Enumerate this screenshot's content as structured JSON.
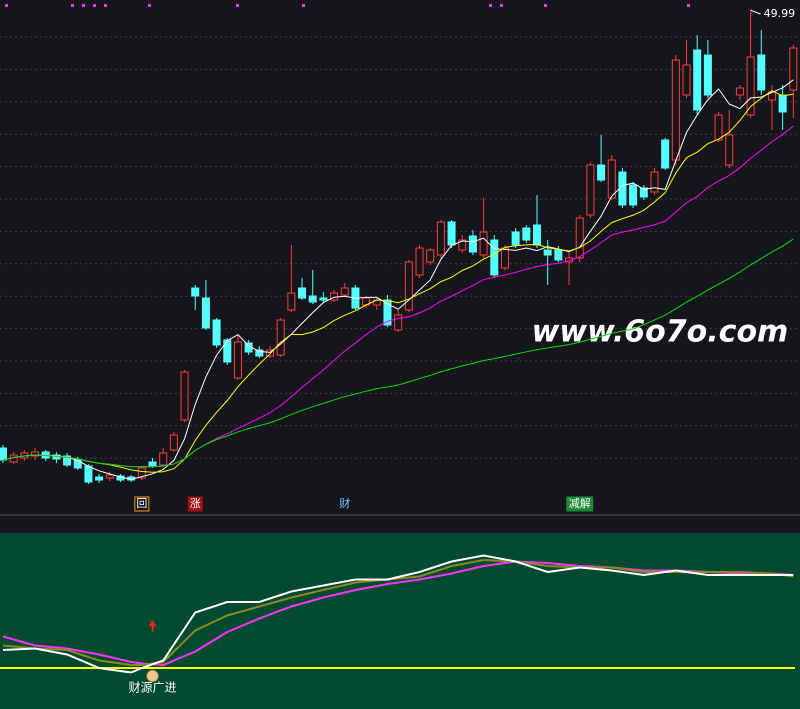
{
  "chart_data": [
    {
      "type": "candlestick",
      "ylim": [
        2,
        51
      ],
      "up_color": "#ff3c3c",
      "down_color": "#54ffff",
      "candles": {
        "open": [
          6.2,
          4.8,
          5.2,
          5.4,
          5.8,
          5.5,
          5.4,
          5.0,
          4.4,
          3.3,
          3.2,
          3.4,
          3.3,
          3.2,
          4.8,
          4.5,
          6.0,
          9.0,
          22.2,
          21.2,
          19.0,
          17.0,
          13.2,
          16.7,
          16.0,
          15.4,
          15.5,
          20.0,
          22.2,
          21.4,
          21.2,
          21.0,
          21.5,
          22.2,
          20.5,
          20.5,
          21.0,
          18.0,
          20.0,
          23.5,
          24.8,
          25.5,
          28.8,
          26.0,
          27.4,
          25.5,
          27.0,
          24.2,
          27.8,
          28.2,
          28.5,
          26.0,
          26.0,
          24.8,
          25.2,
          29.5,
          34.5,
          31.2,
          33.8,
          32.5,
          32.2,
          31.8,
          37.0,
          35.0,
          41.5,
          46.0,
          45.5,
          37.0,
          34.5,
          41.5,
          39.5,
          45.5,
          41.0,
          41.5,
          42.0
        ],
        "high": [
          6.5,
          5.8,
          6.0,
          6.2,
          6.0,
          5.8,
          5.7,
          5.3,
          4.6,
          3.6,
          3.8,
          3.6,
          3.5,
          4.4,
          5.2,
          6.2,
          7.8,
          14.0,
          22.5,
          23.0,
          19.2,
          17.2,
          17.5,
          17.0,
          16.4,
          16.4,
          19.2,
          26.5,
          23.2,
          24.0,
          21.8,
          22.0,
          22.7,
          22.5,
          21.4,
          21.3,
          21.5,
          20.0,
          25.0,
          26.5,
          26.2,
          29.0,
          29.0,
          27.5,
          28.0,
          31.2,
          27.5,
          26.5,
          28.2,
          28.5,
          31.5,
          27.0,
          26.4,
          26.0,
          29.5,
          34.8,
          37.5,
          35.5,
          34.2,
          32.8,
          32.5,
          34.2,
          37.2,
          45.5,
          47.0,
          47.5,
          47.0,
          39.8,
          40.0,
          42.5,
          49.99,
          48.0,
          42.5,
          42.5,
          46.5
        ],
        "low": [
          4.7,
          4.6,
          4.9,
          5.0,
          4.9,
          4.7,
          4.3,
          4.0,
          2.6,
          2.7,
          2.9,
          2.8,
          2.8,
          3.0,
          4.2,
          4.3,
          5.8,
          8.8,
          20.0,
          18.0,
          16.2,
          14.5,
          13.0,
          15.5,
          15.2,
          15.2,
          15.3,
          19.8,
          21.0,
          20.6,
          20.8,
          20.8,
          21.3,
          20.0,
          20.2,
          20.0,
          18.3,
          17.8,
          19.8,
          23.2,
          24.5,
          25.2,
          26.2,
          25.7,
          25.5,
          25.2,
          23.2,
          24.0,
          26.2,
          26.7,
          26.2,
          22.5,
          24.8,
          22.5,
          24.8,
          29.2,
          32.8,
          31.0,
          30.2,
          30.2,
          31.0,
          31.5,
          34.0,
          34.5,
          41.2,
          39.5,
          41.2,
          36.8,
          34.2,
          41.0,
          39.2,
          41.5,
          38.0,
          38.0,
          39.2
        ],
        "close": [
          5.0,
          5.5,
          5.7,
          5.8,
          5.2,
          5.1,
          4.5,
          4.2,
          2.8,
          3.0,
          3.5,
          3.0,
          3.0,
          4.2,
          4.4,
          5.7,
          7.5,
          13.8,
          21.4,
          18.2,
          16.5,
          14.8,
          16.8,
          15.8,
          15.4,
          16.0,
          19.0,
          21.7,
          21.2,
          20.8,
          21.0,
          21.7,
          22.2,
          20.2,
          21.2,
          21.0,
          18.5,
          19.5,
          24.8,
          26.2,
          26.0,
          28.8,
          26.5,
          27.0,
          25.8,
          27.8,
          23.5,
          26.2,
          26.5,
          27.0,
          26.5,
          25.5,
          25.0,
          25.2,
          29.2,
          34.5,
          33.0,
          35.0,
          30.5,
          30.5,
          31.3,
          33.8,
          34.2,
          45.0,
          44.5,
          40.0,
          41.5,
          39.5,
          37.5,
          42.2,
          45.3,
          42.0,
          41.8,
          39.8,
          46.2
        ]
      },
      "ma": [
        {
          "period": 5,
          "color": "#ffffff"
        },
        {
          "period": 10,
          "color": "#ffff00"
        },
        {
          "period": 20,
          "color": "#ff00ff"
        },
        {
          "period": 60,
          "color": "#00e000"
        }
      ],
      "markers": [
        {
          "x": 13,
          "label": "回",
          "color": "#ffffff",
          "box": "#ff9900"
        },
        {
          "x": 18,
          "label": "涨",
          "color": "#ffffff",
          "box": "#a01010"
        },
        {
          "x": 32,
          "label": "财",
          "color": "#66ccff",
          "box": ""
        },
        {
          "x": 54,
          "label": "减解",
          "color": "#ffffff",
          "box": "#1a8a3a"
        }
      ],
      "watermark": "www.6o7o.com"
    },
    {
      "type": "line",
      "x": [
        0,
        3,
        6,
        9,
        12,
        13,
        15,
        18,
        21,
        24,
        27,
        30,
        33,
        36,
        39,
        42,
        45,
        48,
        51,
        54,
        57,
        60,
        63,
        66,
        69,
        72,
        74
      ],
      "ylim": [
        0,
        100
      ],
      "series": [
        {
          "color": "#ff33ff",
          "values": [
            31,
            25,
            23,
            19,
            14,
            13,
            12,
            21,
            34,
            43,
            51,
            57,
            62,
            66,
            69,
            73,
            78,
            81,
            80,
            78,
            77,
            75,
            75,
            74,
            73,
            73,
            72
          ]
        },
        {
          "color": "#8a8a20",
          "values": [
            25,
            23,
            22,
            15,
            12,
            12,
            14,
            35,
            45,
            51,
            57,
            62,
            67,
            69,
            71,
            78,
            82,
            81,
            78,
            77,
            77,
            74,
            74,
            74,
            74,
            73,
            71
          ]
        },
        {
          "color": "#ffffff",
          "values": [
            22,
            23,
            19,
            10,
            7,
            10,
            15,
            47,
            54,
            54,
            61,
            65,
            69,
            69,
            74,
            81,
            85,
            81,
            74,
            77,
            75,
            72,
            75,
            72,
            72,
            72,
            72
          ]
        }
      ],
      "reference": 10,
      "reference_color": "#ffff00",
      "signal": {
        "x": 14,
        "label": "财源广进"
      }
    }
  ]
}
